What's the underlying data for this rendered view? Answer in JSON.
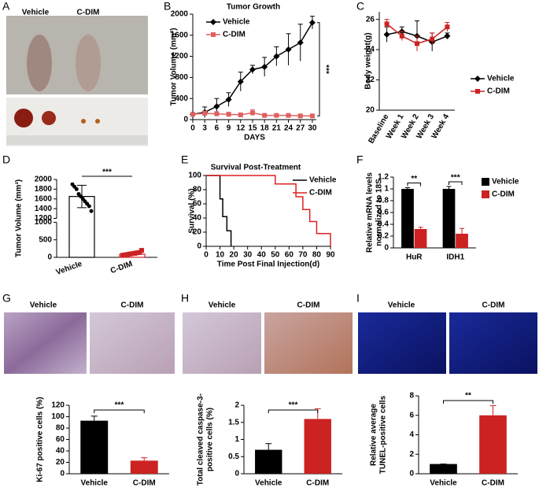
{
  "chart_data": [
    {
      "type": "image",
      "panel": "A",
      "labels": [
        "Vehicle",
        "C-DIM"
      ]
    },
    {
      "type": "line",
      "panel": "B",
      "title": "Tumor Growth",
      "xlabel": "DAYS",
      "ylabel": "Tumor Volume (mm³)",
      "x": [
        0,
        3,
        6,
        9,
        12,
        15,
        18,
        21,
        24,
        27,
        30
      ],
      "xlim": [
        0,
        31
      ],
      "xticks": [
        0,
        3,
        6,
        9,
        12,
        15,
        18,
        21,
        24,
        27,
        30
      ],
      "ylim": [
        0,
        2000
      ],
      "yticks": [
        0,
        400,
        800,
        1200,
        1600,
        2000
      ],
      "series": [
        {
          "name": "Vehicle",
          "color": "#000000",
          "marker": "diamond",
          "values": [
            100,
            140,
            250,
            380,
            720,
            950,
            1000,
            1200,
            1330,
            1460,
            1840
          ],
          "errors": [
            20,
            100,
            150,
            130,
            180,
            80,
            180,
            180,
            300,
            350,
            120
          ]
        },
        {
          "name": "C-DIM",
          "color": "#e06060",
          "marker": "square",
          "values": [
            100,
            120,
            110,
            100,
            90,
            130,
            80,
            80,
            80,
            70,
            70
          ],
          "errors": [
            10,
            40,
            40,
            40,
            30,
            60,
            30,
            30,
            20,
            20,
            20
          ]
        }
      ],
      "annotations": [
        "***"
      ]
    },
    {
      "type": "line",
      "panel": "C",
      "ylabel": "Body weight(g)",
      "categories": [
        "Baseline",
        "Week 1",
        "Week 2",
        "Week 3",
        "Week 4"
      ],
      "ylim": [
        20,
        26.5
      ],
      "yticks": [
        20,
        22,
        24,
        26
      ],
      "series": [
        {
          "name": "Vehicle",
          "color": "#000000",
          "marker": "diamond",
          "values": [
            25,
            25.2,
            24.9,
            24.5,
            24.9
          ],
          "errors": [
            0.5,
            0.3,
            1.0,
            0.6,
            0.2
          ]
        },
        {
          "name": "C-DIM",
          "color": "#cc2222",
          "marker": "square",
          "values": [
            25.7,
            24.9,
            24.4,
            24.7,
            25.5
          ],
          "errors": [
            0.3,
            0.3,
            0.5,
            0.4,
            0.3
          ]
        }
      ]
    },
    {
      "type": "dot_bar",
      "panel": "D",
      "ylabel": "Tumor Volume (mm³)",
      "categories": [
        "Vehicle",
        "C-DIM"
      ],
      "values": [
        1650,
        90
      ],
      "errors": [
        230,
        30
      ],
      "colors": [
        "#000000",
        "#cc2222"
      ],
      "points": [
        [
          1900,
          1850,
          1800,
          1700,
          1650,
          1600,
          1550,
          1500,
          1450,
          1350
        ],
        [
          60,
          70,
          80,
          90,
          100,
          110,
          120,
          130,
          140,
          200
        ]
      ],
      "ylim": [
        0,
        2000
      ],
      "ybreak": [
        1000,
        1200
      ],
      "yticks": [
        0,
        500,
        1000,
        1200,
        1400,
        1600,
        1800,
        2000
      ],
      "annotations": [
        "***"
      ]
    },
    {
      "type": "step",
      "panel": "E",
      "title": "Survival Post-Treatment",
      "xlabel": "Time Post Final Injection(d)",
      "ylabel": "Survival (%)",
      "xlim": [
        0,
        90
      ],
      "xticks": [
        0,
        10,
        20,
        30,
        40,
        50,
        60,
        70,
        80,
        90
      ],
      "ylim": [
        0,
        100
      ],
      "yticks": [
        0,
        20,
        40,
        60,
        80,
        100
      ],
      "series": [
        {
          "name": "Vehicle",
          "color": "#000000",
          "x": [
            0,
            10,
            12,
            15,
            18
          ],
          "values": [
            100,
            67,
            42,
            22,
            0
          ]
        },
        {
          "name": "C-DIM",
          "color": "#dd2222",
          "x": [
            0,
            50,
            65,
            70,
            75,
            80,
            90
          ],
          "values": [
            100,
            88,
            70,
            52,
            35,
            18,
            0
          ]
        }
      ]
    },
    {
      "type": "grouped_bar",
      "panel": "F",
      "ylabel": [
        "Relative mRNA levels",
        "normalized to 18S"
      ],
      "categories": [
        "HuR",
        "IDH1"
      ],
      "ylim": [
        0,
        1.2
      ],
      "yticks": [
        0,
        0.2,
        0.4,
        0.6,
        0.8,
        1,
        1.2
      ],
      "series": [
        {
          "name": "Vehicle",
          "color": "#000000",
          "values": [
            1,
            1
          ],
          "errors": [
            0.02,
            0.04
          ]
        },
        {
          "name": "C-DIM",
          "color": "#cc2222",
          "values": [
            0.32,
            0.24
          ],
          "errors": [
            0.03,
            0.09
          ]
        }
      ],
      "annotations": [
        "**",
        "***"
      ]
    },
    {
      "type": "bar",
      "panel": "G",
      "image_labels": [
        "Vehicle",
        "C-DIM"
      ],
      "ylabel": "Ki-67 positive cells (%)",
      "categories": [
        "Vehicle",
        "C-DIM"
      ],
      "values": [
        93,
        23
      ],
      "errors": [
        8,
        5
      ],
      "colors": [
        "#000000",
        "#cc2222"
      ],
      "ylim": [
        0,
        120
      ],
      "yticks": [
        0,
        20,
        40,
        60,
        80,
        100,
        120
      ],
      "annotations": [
        "***"
      ]
    },
    {
      "type": "bar",
      "panel": "H",
      "image_labels": [
        "Vehicle",
        "C-DIM"
      ],
      "ylabel": [
        "Total cleaved caspase-3-",
        "positive cells (%)"
      ],
      "categories": [
        "Vehicle",
        "C-DIM"
      ],
      "values": [
        0.7,
        1.6
      ],
      "errors": [
        0.18,
        0.3
      ],
      "colors": [
        "#000000",
        "#cc2222"
      ],
      "ylim": [
        0,
        2
      ],
      "yticks": [
        0,
        0.5,
        1,
        1.5,
        2
      ],
      "annotations": [
        "***"
      ]
    },
    {
      "type": "bar",
      "panel": "I",
      "image_labels": [
        "Vehicle",
        "C-DIM"
      ],
      "ylabel": [
        "Relative average",
        "TUNEL-positive cells"
      ],
      "categories": [
        "Vehicle",
        "C-DIM"
      ],
      "values": [
        1,
        6
      ],
      "errors": [
        0,
        1
      ],
      "colors": [
        "#000000",
        "#cc2222"
      ],
      "ylim": [
        0,
        8
      ],
      "yticks": [
        0,
        2,
        4,
        6,
        8
      ],
      "annotations": [
        "**"
      ]
    }
  ]
}
